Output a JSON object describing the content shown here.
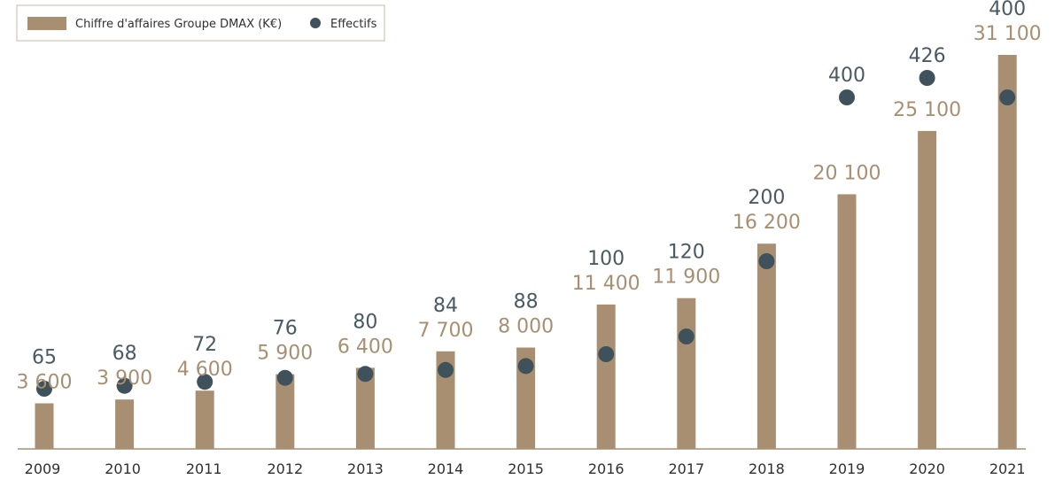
{
  "chart_data": {
    "type": "bar",
    "categories": [
      "2009",
      "2010",
      "2011",
      "2012",
      "2013",
      "2014",
      "2015",
      "2016",
      "2017",
      "2018",
      "2019",
      "2020",
      "2021"
    ],
    "series": [
      {
        "name": "Chiffre d'affaires Groupe DMAX (K€)",
        "kind": "bar",
        "color": "#a88f72",
        "values": [
          3600,
          3900,
          4600,
          5900,
          6400,
          7700,
          8000,
          11400,
          11900,
          16200,
          20100,
          25100,
          31100
        ],
        "labels": [
          "3 600",
          "3 900",
          "4 600",
          "5 900",
          "6 400",
          "7 700",
          "8 000",
          "11 400",
          "11 900",
          "16 200",
          "20 100",
          "25 100",
          "31 100"
        ]
      },
      {
        "name": "Effectifs",
        "kind": "scatter",
        "color": "#3f525c",
        "values": [
          65,
          68,
          72,
          76,
          80,
          84,
          88,
          100,
          120,
          200,
          400,
          426,
          400
        ],
        "labels": [
          "65",
          "68",
          "72",
          "76",
          "80",
          "84",
          "88",
          "100",
          "120",
          "200",
          "400",
          "426",
          "400"
        ]
      }
    ],
    "grid": false,
    "legend": {
      "position": "top-left",
      "items": [
        "Chiffre d'affaires Groupe DMAX (K€)",
        "Effectifs"
      ]
    }
  }
}
